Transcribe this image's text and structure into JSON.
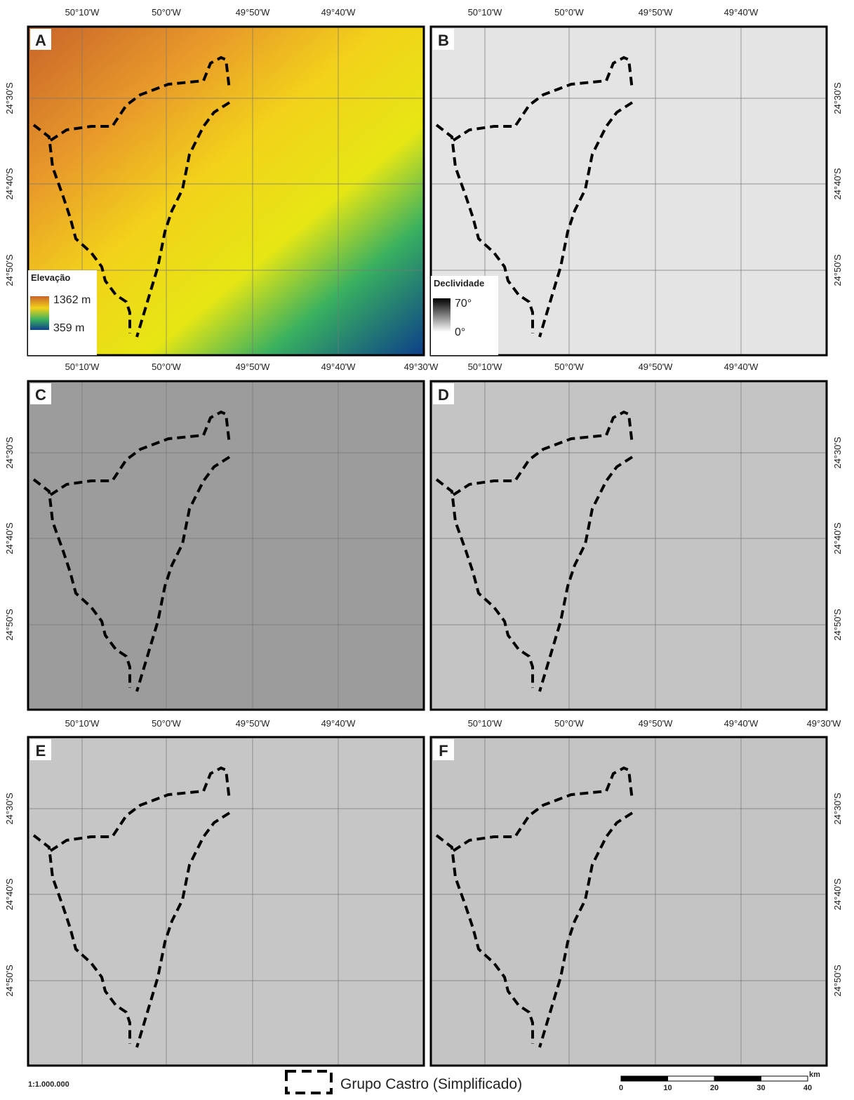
{
  "panels": [
    {
      "letter": "A"
    },
    {
      "letter": "B"
    },
    {
      "letter": "C"
    },
    {
      "letter": "D"
    },
    {
      "letter": "E"
    },
    {
      "letter": "F"
    }
  ],
  "legend_elevation": {
    "title": "Elevação",
    "max": "1362 m",
    "min": "359 m"
  },
  "legend_slope": {
    "title": "Declividade",
    "max": "70°",
    "min": "0°"
  },
  "lon_labels": [
    "50°10'W",
    "50°0'W",
    "49°50'W",
    "49°40'W",
    "49°30'W"
  ],
  "lat_labels": [
    "24°30'S",
    "24°40'S",
    "24°50'S"
  ],
  "scale_ratio": "1:1.000.000",
  "legend_text": "Grupo Castro (Simplificado)",
  "scalebar": {
    "ticks": [
      "0",
      "10",
      "20",
      "30",
      "40"
    ],
    "unit": "km"
  }
}
